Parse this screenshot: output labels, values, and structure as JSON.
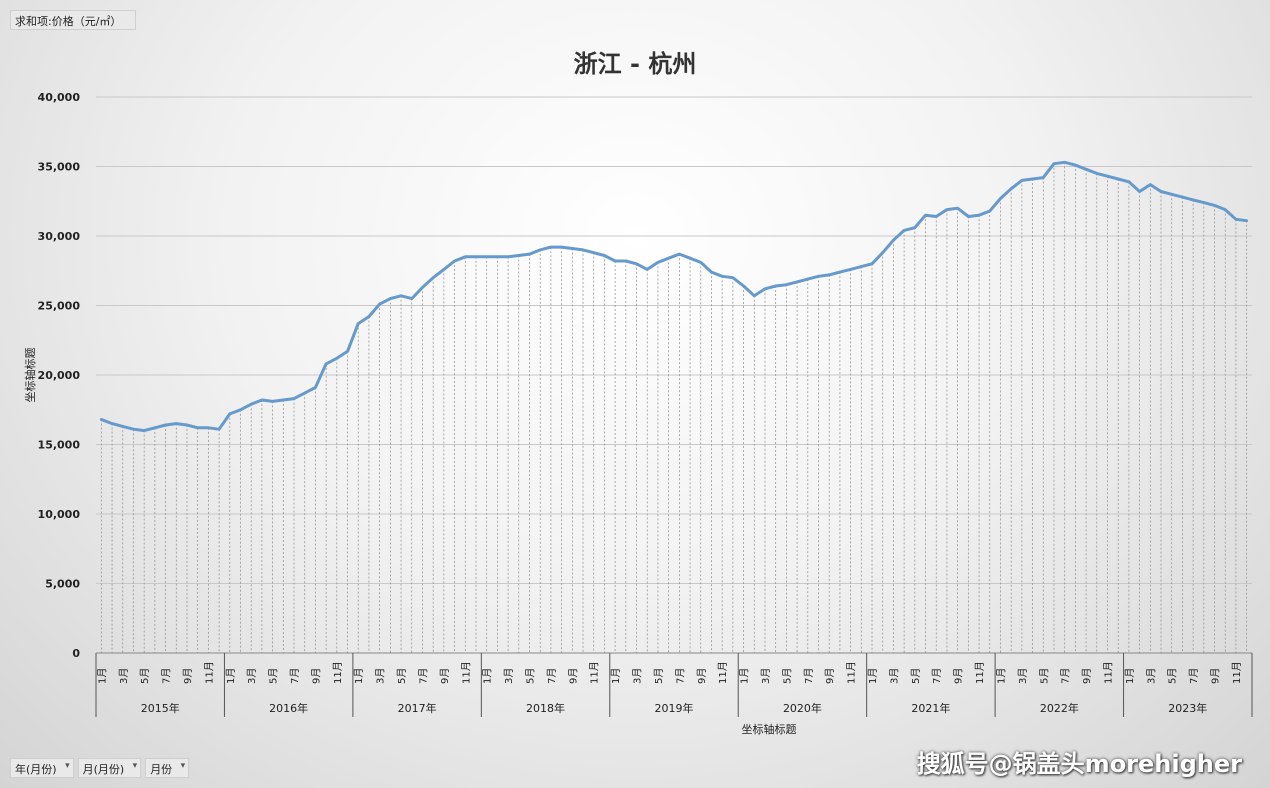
{
  "field_button": "求和项:价格（元/㎡）",
  "bottom_fields": [
    {
      "label": "年(月份)",
      "arrow": "▾"
    },
    {
      "label": "月(月份)",
      "arrow": "▾"
    },
    {
      "label": "月份",
      "arrow": "▾"
    }
  ],
  "watermark": "搜狐号@锅盖头morehigher",
  "chart_data": {
    "type": "line",
    "title": "浙江 - 杭州",
    "xlabel": "坐标轴标题",
    "ylabel": "坐标轴标题",
    "ylim": [
      0,
      40000
    ],
    "yticks": [
      "0",
      "5,000",
      "10,000",
      "15,000",
      "20,000",
      "25,000",
      "30,000",
      "35,000",
      "40,000"
    ],
    "grid": true,
    "legend": "none",
    "line_color": "#6699cc",
    "years": [
      "2015年",
      "2016年",
      "2017年",
      "2018年",
      "2019年",
      "2020年",
      "2021年",
      "2022年",
      "2023年"
    ],
    "month_labels": [
      "1月",
      "3月",
      "5月",
      "7月",
      "9月",
      "11月"
    ],
    "series": [
      {
        "values": [
          16800,
          16500,
          16300,
          16100,
          16000,
          16200,
          16400,
          16500,
          16400,
          16200,
          16200,
          16100,
          17200,
          17500,
          17900,
          18200,
          18100,
          18200,
          18300,
          18700,
          19100,
          20800,
          21200,
          21700,
          23700,
          24200,
          25100,
          25500,
          25700,
          25500,
          26300,
          27000,
          27600,
          28200,
          28500,
          28500,
          28500,
          28500,
          28500,
          28600,
          28700,
          29000,
          29200,
          29200,
          29100,
          29000,
          28800,
          28600,
          28200,
          28200,
          28000,
          27600,
          28100,
          28400,
          28700,
          28400,
          28100,
          27400,
          27100,
          27000,
          26400,
          25700,
          26200,
          26400,
          26500,
          26700,
          26900,
          27100,
          27200,
          27400,
          27600,
          27800,
          28000,
          28800,
          29700,
          30400,
          30600,
          31500,
          31400,
          31900,
          32000,
          31400,
          31500,
          31800,
          32700,
          33400,
          34000,
          34100,
          34200,
          35200,
          35300,
          35100,
          34800,
          34500,
          34300,
          34100,
          33900,
          33200,
          33700,
          33200,
          33000,
          32800,
          32600,
          32400,
          32200,
          31900,
          31200,
          31100
        ]
      }
    ]
  }
}
